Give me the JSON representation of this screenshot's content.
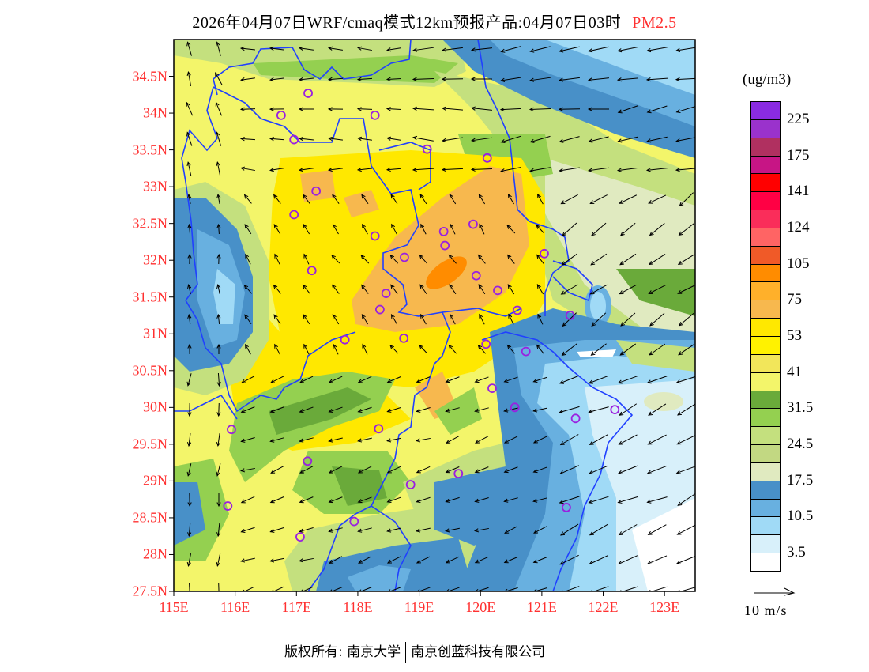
{
  "title": {
    "main": "2026年04月07日WRF/cmaq模式12km预报产品:04月07日03时",
    "pollutant": "PM2.5"
  },
  "axes": {
    "lat_labels": [
      "34.5N",
      "34N",
      "33.5N",
      "33N",
      "32.5N",
      "32N",
      "31.5N",
      "31N",
      "30.5N",
      "30N",
      "29.5N",
      "29N",
      "28.5N",
      "28N",
      "27.5N"
    ],
    "lat_values": [
      34.5,
      34,
      33.5,
      33,
      32.5,
      32,
      31.5,
      31,
      30.5,
      30,
      29.5,
      29,
      28.5,
      28,
      27.5
    ],
    "lon_labels": [
      "115E",
      "116E",
      "117E",
      "118E",
      "119E",
      "120E",
      "121E",
      "122E",
      "123E"
    ],
    "lon_values": [
      115,
      116,
      117,
      118,
      119,
      120,
      121,
      122,
      123
    ],
    "lon_range": [
      115,
      123.5
    ],
    "lat_range": [
      27.5,
      35.0
    ]
  },
  "legend": {
    "unit": "(ug/m3)",
    "colors": [
      "#8a2be2",
      "#9a32cc",
      "#b03060",
      "#c71585",
      "#ff0000",
      "#ff0044",
      "#fa2d5a",
      "#ff6464",
      "#f05a28",
      "#ff8c00",
      "#ffb02a",
      "#f7b84e",
      "#ffe800",
      "#fff200",
      "#f2e65a",
      "#f3f56a",
      "#6aaa3a",
      "#94d050",
      "#c4e07e",
      "#c2d882",
      "#e0eac0",
      "#4890c8",
      "#68b0e0",
      "#a0daf6",
      "#d8f0fa",
      "#ffffff"
    ],
    "labels": [
      "225",
      "175",
      "141",
      "124",
      "105",
      "75",
      "53",
      "41",
      "31.5",
      "24.5",
      "17.5",
      "10.5",
      "3.5"
    ]
  },
  "wind_scale": {
    "label": "10 m/s"
  },
  "stations": [
    [
      117.19,
      34.27
    ],
    [
      116.75,
      33.97
    ],
    [
      118.28,
      33.97
    ],
    [
      116.96,
      33.64
    ],
    [
      119.13,
      33.51
    ],
    [
      120.11,
      33.39
    ],
    [
      117.32,
      32.94
    ],
    [
      116.96,
      32.62
    ],
    [
      118.28,
      32.33
    ],
    [
      119.4,
      32.39
    ],
    [
      119.42,
      32.2
    ],
    [
      119.88,
      32.49
    ],
    [
      118.76,
      32.04
    ],
    [
      121.04,
      32.09
    ],
    [
      117.25,
      31.86
    ],
    [
      119.93,
      31.79
    ],
    [
      120.28,
      31.59
    ],
    [
      118.46,
      31.55
    ],
    [
      118.36,
      31.33
    ],
    [
      120.6,
      31.32
    ],
    [
      121.46,
      31.25
    ],
    [
      118.75,
      30.94
    ],
    [
      117.79,
      30.92
    ],
    [
      120.09,
      30.86
    ],
    [
      120.74,
      30.76
    ],
    [
      120.19,
      30.26
    ],
    [
      120.56,
      30.0
    ],
    [
      121.55,
      29.85
    ],
    [
      122.19,
      29.97
    ],
    [
      118.34,
      29.71
    ],
    [
      115.94,
      29.7
    ],
    [
      117.18,
      29.27
    ],
    [
      118.86,
      28.95
    ],
    [
      119.64,
      29.1
    ],
    [
      115.88,
      28.66
    ],
    [
      117.94,
      28.45
    ],
    [
      117.06,
      28.24
    ],
    [
      121.4,
      28.64
    ]
  ],
  "colors": {
    "station": "#9a20e0",
    "boundary": "#2040ff",
    "axis_label": "#ff3030"
  },
  "footer": {
    "copyright_label": "版权所有:",
    "org1": "南京大学",
    "org2": "南京创蓝科技有限公司"
  }
}
